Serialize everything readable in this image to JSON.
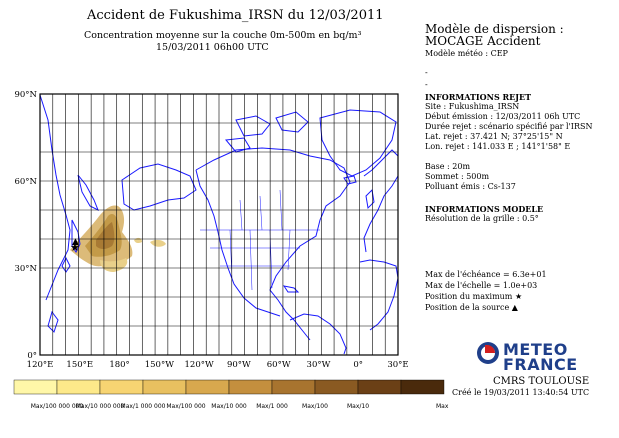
{
  "header": {
    "title": "Accident de Fukushima_IRSN du 12/03/2011",
    "subtitle": "Concentration moyenne sur la couche 0m-500m en bq/m³",
    "datetime": "15/03/2011 06h00 UTC"
  },
  "model": {
    "line1": "Modèle de dispersion :",
    "line2": "MOCAGE Accident",
    "line3": "Modèle météo : CEP",
    "dash1": "-",
    "dash2": "-"
  },
  "release": {
    "heading": "INFORMATIONS REJET",
    "site": "Site : Fukushima_IRSN",
    "debut": "Début émission : 12/03/2011 06h UTC",
    "duree": "Durée rejet : scénario spécifié par l'IRSN",
    "lat": "Lat. rejet : 37.421 N; 37°25'15\" N",
    "lon": "Lon. rejet : 141.033 E ; 141°1'58\" E",
    "base": "Base : 20m",
    "sommet": "Sommet : 500m",
    "polluant": "Polluant émis : Cs-137"
  },
  "model_info": {
    "heading": "INFORMATIONS MODELE",
    "resolution": "Résolution de la grille : 0.5°"
  },
  "stats": {
    "max_echeance": "Max de l'échéance = 6.3e+01",
    "max_echelle": "Max de l'échelle = 1.0e+03",
    "pos_max": "Position du maximum",
    "pos_max_symbol": "★",
    "pos_source": "Position de la source",
    "pos_source_symbol": "▲"
  },
  "map": {
    "lat_labels": [
      "90°N",
      "60°N",
      "30°N",
      "0°"
    ],
    "lon_labels": [
      "120°E",
      "150°E",
      "180°",
      "150°W",
      "120°W",
      "90°W",
      "60°W",
      "30°W",
      "0°",
      "30°E"
    ],
    "land_color": "#1a1aff",
    "grid_color": "#000000"
  },
  "colorbar": {
    "colors": [
      "#fff7a8",
      "#fde98a",
      "#f7d472",
      "#e8c060",
      "#d8a84e",
      "#c48f3e",
      "#a8742f",
      "#8a5a22",
      "#6b4016",
      "#4a2a0c"
    ],
    "labels": [
      "Max/100 000 000",
      "Max/10 000 000",
      "Max/1 000 000",
      "Max/100 000",
      "Max/10 000",
      "Max/1 000",
      "Max/100",
      "Max/10",
      "Max"
    ]
  },
  "logo": {
    "line1": "METEO",
    "line2": "FRANCE",
    "center": "CMRS TOULOUSE",
    "created": "Créé le 19/03/2011 13:40:54 UTC",
    "accent": "#1f3f8a",
    "red": "#d21f1f"
  }
}
